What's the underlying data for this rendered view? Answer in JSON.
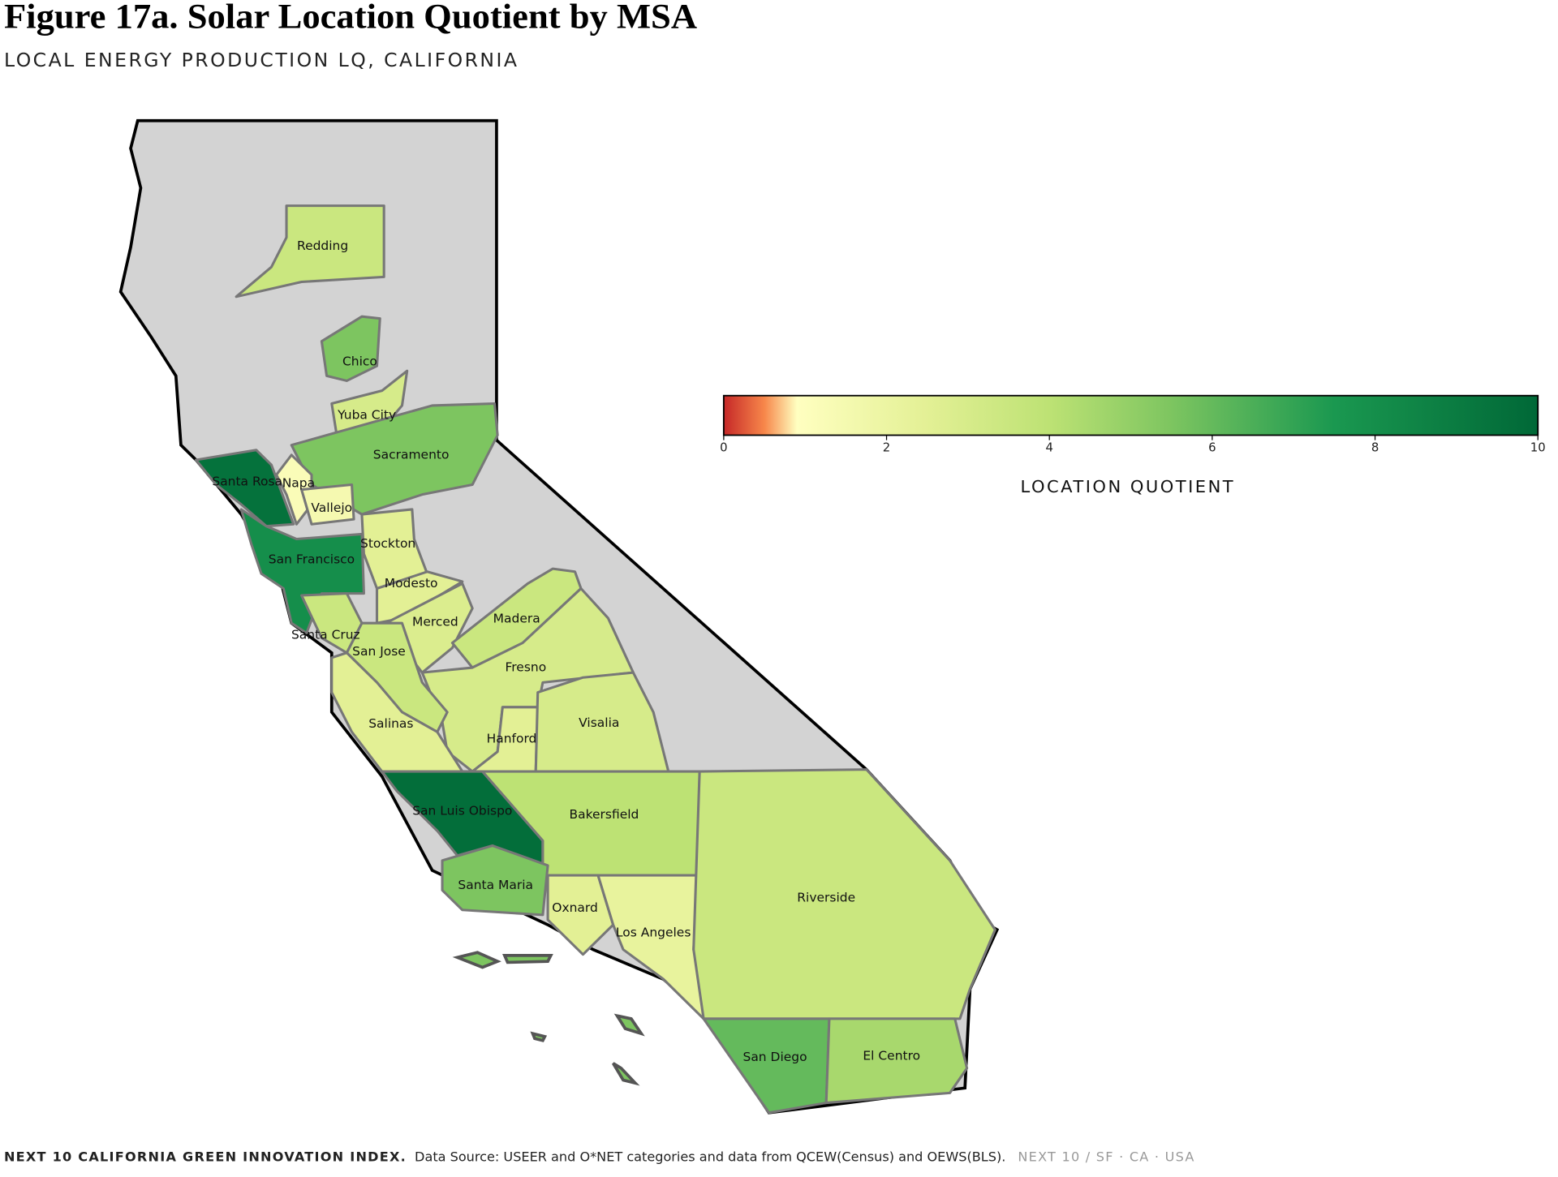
{
  "chart_data": {
    "type": "choropleth",
    "title": "Figure 17a. Solar Location Quotient by MSA",
    "subtitle": "LOCAL ENERGY PRODUCTION LQ, CALIFORNIA",
    "regions": [
      {
        "name": "Redding",
        "value": 3.5
      },
      {
        "name": "Chico",
        "value": 5.5
      },
      {
        "name": "Yuba City",
        "value": 3
      },
      {
        "name": "Sacramento",
        "value": 5.5
      },
      {
        "name": "Santa Rosa",
        "value": 9.5
      },
      {
        "name": "Napa",
        "value": 1.2
      },
      {
        "name": "Vallejo",
        "value": 1.5
      },
      {
        "name": "San Francisco",
        "value": 8
      },
      {
        "name": "Stockton",
        "value": 2.5
      },
      {
        "name": "Modesto",
        "value": 2.5
      },
      {
        "name": "Merced",
        "value": 2.8
      },
      {
        "name": "Madera",
        "value": 3.5
      },
      {
        "name": "Fresno",
        "value": 3
      },
      {
        "name": "Santa Cruz",
        "value": 3.5
      },
      {
        "name": "San Jose",
        "value": 3.5
      },
      {
        "name": "Salinas",
        "value": 2.5
      },
      {
        "name": "Hanford",
        "value": 2.5
      },
      {
        "name": "Visalia",
        "value": 3
      },
      {
        "name": "San Luis Obispo",
        "value": 9.7
      },
      {
        "name": "Bakersfield",
        "value": 4
      },
      {
        "name": "Santa Maria",
        "value": 5.5
      },
      {
        "name": "Oxnard",
        "value": 2.5
      },
      {
        "name": "Los Angeles",
        "value": 2.2
      },
      {
        "name": "Riverside",
        "value": 3.5
      },
      {
        "name": "San Diego",
        "value": 6
      },
      {
        "name": "El Centro",
        "value": 4.5
      }
    ],
    "colorbar": {
      "label": "LOCATION QUOTIENT",
      "lim": [
        0,
        10
      ],
      "ticks": [
        0,
        2,
        4,
        6,
        8,
        10
      ],
      "stops": [
        {
          "value": 0,
          "color": "#c62828"
        },
        {
          "value": 0.5,
          "color": "#f7874a"
        },
        {
          "value": 0.9,
          "color": "#ffffc0"
        },
        {
          "value": 2.5,
          "color": "#e3f095"
        },
        {
          "value": 4,
          "color": "#bde274"
        },
        {
          "value": 5.5,
          "color": "#7dc560"
        },
        {
          "value": 7.5,
          "color": "#1a9850"
        },
        {
          "value": 10,
          "color": "#006837"
        }
      ]
    }
  },
  "footer": {
    "org": "NEXT 10 CALIFORNIA GREEN INNOVATION INDEX.",
    "source": "Data Source: USEER and O*NET categories and data from QCEW(Census) and OEWS(BLS).",
    "brand": "NEXT 10  /  SF · CA · USA"
  }
}
